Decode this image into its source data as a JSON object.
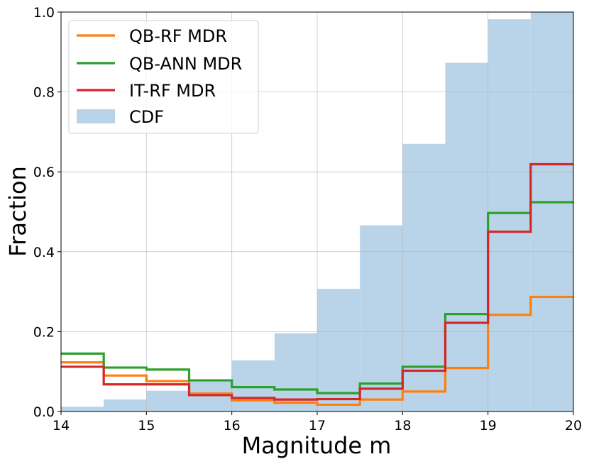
{
  "chart_data": {
    "type": "bar",
    "xlabel": "Magnitude m",
    "ylabel": "Fraction",
    "xlim": [
      14,
      20
    ],
    "ylim": [
      0.0,
      1.0
    ],
    "x_ticks": [
      "14",
      "15",
      "16",
      "17",
      "18",
      "19",
      "20"
    ],
    "y_ticks": [
      "0.0",
      "0.2",
      "0.4",
      "0.6",
      "0.8",
      "1.0"
    ],
    "grid": true,
    "legend_position": "top-left",
    "bin_edges": [
      14,
      14.5,
      15,
      15.5,
      16,
      16.5,
      17,
      17.5,
      18,
      18.5,
      19,
      19.5,
      20
    ],
    "histogram": {
      "name": "CDF",
      "color": "#b9d4e8",
      "values": [
        0.012,
        0.03,
        0.052,
        0.079,
        0.128,
        0.196,
        0.307,
        0.466,
        0.67,
        0.873,
        0.982,
        1.0
      ]
    },
    "series": [
      {
        "name": "QB-RF MDR",
        "color": "#ff7f0e",
        "values": [
          0.123,
          0.09,
          0.076,
          0.045,
          0.028,
          0.022,
          0.017,
          0.03,
          0.05,
          0.109,
          0.242,
          0.287
        ]
      },
      {
        "name": "QB-ANN MDR",
        "color": "#2ca02c",
        "values": [
          0.145,
          0.11,
          0.105,
          0.078,
          0.061,
          0.055,
          0.046,
          0.07,
          0.112,
          0.244,
          0.497,
          0.524
        ]
      },
      {
        "name": "IT-RF MDR",
        "color": "#d62728",
        "values": [
          0.112,
          0.068,
          0.068,
          0.041,
          0.034,
          0.03,
          0.031,
          0.057,
          0.102,
          0.222,
          0.45,
          0.619
        ]
      }
    ]
  }
}
